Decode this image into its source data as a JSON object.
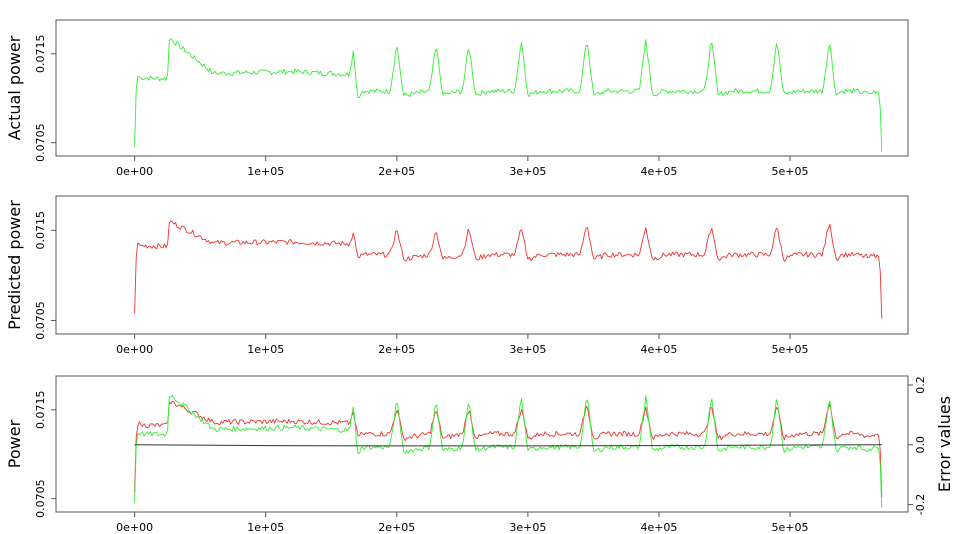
{
  "chart_data": [
    {
      "type": "line",
      "xlabel": "",
      "ylabel": "Actual power",
      "xlim": [
        -60000,
        590000
      ],
      "ylim": [
        0.07035,
        0.07188
      ],
      "xticks": [
        0,
        100000,
        200000,
        300000,
        400000,
        500000
      ],
      "xtick_labels": [
        "0e+00",
        "1e+05",
        "2e+05",
        "3e+05",
        "4e+05",
        "5e+05"
      ],
      "yticks": [
        0.0705,
        0.0715
      ],
      "ytick_labels": [
        "0.0705",
        "0.0715"
      ],
      "series": [
        {
          "color": "#33ee33",
          "x": [
            0,
            1500,
            5000,
            25000,
            26500,
            60000,
            120000,
            164000,
            167000,
            170000,
            174000,
            195000,
            200000,
            205000,
            225000,
            230000,
            235000,
            250000,
            255000,
            260000,
            270000,
            290000,
            295000,
            300000,
            310000,
            340000,
            345000,
            350000,
            360000,
            385000,
            390000,
            395000,
            405000,
            435000,
            440000,
            445000,
            455000,
            485000,
            490000,
            495000,
            505000,
            525000,
            530000,
            535000,
            540000,
            550000,
            560000,
            567000,
            568500,
            570000
          ],
          "y": [
            0.07045,
            0.07125,
            0.07123,
            0.07122,
            0.07168,
            0.07128,
            0.0713,
            0.07127,
            0.07155,
            0.071,
            0.07108,
            0.07108,
            0.07162,
            0.07103,
            0.07108,
            0.0716,
            0.07104,
            0.07108,
            0.0716,
            0.07104,
            0.07108,
            0.07108,
            0.07165,
            0.07104,
            0.07108,
            0.07108,
            0.07168,
            0.07103,
            0.07108,
            0.07108,
            0.07166,
            0.07104,
            0.07108,
            0.07108,
            0.07167,
            0.07104,
            0.07108,
            0.07108,
            0.07166,
            0.07104,
            0.07108,
            0.07108,
            0.07165,
            0.07104,
            0.07108,
            0.07108,
            0.07105,
            0.07108,
            0.07102,
            0.0704
          ]
        }
      ]
    },
    {
      "type": "line",
      "xlabel": "",
      "ylabel": "Predicted power",
      "xlim": [
        -60000,
        590000
      ],
      "ylim": [
        0.07035,
        0.07188
      ],
      "xticks": [
        0,
        100000,
        200000,
        300000,
        400000,
        500000
      ],
      "xtick_labels": [
        "0e+00",
        "1e+05",
        "2e+05",
        "3e+05",
        "4e+05",
        "5e+05"
      ],
      "yticks": [
        0.0705,
        0.0715
      ],
      "ytick_labels": [
        "0.0705",
        "0.0715"
      ],
      "series": [
        {
          "color": "#ee3333",
          "x": [
            0,
            1500,
            5000,
            25000,
            26500,
            60000,
            120000,
            164000,
            167000,
            170000,
            174000,
            195000,
            200000,
            205000,
            225000,
            230000,
            235000,
            250000,
            255000,
            260000,
            270000,
            290000,
            295000,
            300000,
            310000,
            340000,
            345000,
            350000,
            360000,
            385000,
            390000,
            395000,
            405000,
            435000,
            440000,
            445000,
            455000,
            485000,
            490000,
            495000,
            505000,
            525000,
            530000,
            535000,
            540000,
            550000,
            560000,
            567000,
            568500,
            570000
          ],
          "y": [
            0.07058,
            0.07135,
            0.07133,
            0.07132,
            0.0716,
            0.07136,
            0.07137,
            0.07135,
            0.07148,
            0.0712,
            0.07123,
            0.07123,
            0.07152,
            0.07118,
            0.07123,
            0.0715,
            0.07118,
            0.07123,
            0.07152,
            0.07118,
            0.07123,
            0.07123,
            0.07152,
            0.07118,
            0.07123,
            0.07123,
            0.07158,
            0.07118,
            0.07123,
            0.07123,
            0.07153,
            0.07118,
            0.07123,
            0.07123,
            0.07155,
            0.07118,
            0.07123,
            0.07123,
            0.07155,
            0.07118,
            0.07123,
            0.07123,
            0.0716,
            0.07118,
            0.07123,
            0.07123,
            0.0712,
            0.07123,
            0.07118,
            0.07052
          ]
        }
      ]
    },
    {
      "type": "line",
      "xlabel": "",
      "ylabel": "Power",
      "y2label": "Error values",
      "xlim": [
        -60000,
        590000
      ],
      "ylim": [
        0.07035,
        0.07188
      ],
      "y2lim": [
        -0.225,
        0.23
      ],
      "xticks": [
        0,
        100000,
        200000,
        300000,
        400000,
        500000
      ],
      "xtick_labels": [
        "0e+00",
        "1e+05",
        "2e+05",
        "3e+05",
        "4e+05",
        "5e+05"
      ],
      "yticks": [
        0.0705,
        0.0715
      ],
      "ytick_labels": [
        "0.0705",
        "0.0715"
      ],
      "y2ticks": [
        -0.2,
        0.0,
        0.2
      ],
      "y2tick_labels": [
        "-0.2",
        "0.0",
        "0.2"
      ],
      "series": [
        {
          "color": "#ee3333",
          "axis": "left",
          "x": [
            0,
            1500,
            5000,
            25000,
            26500,
            60000,
            120000,
            164000,
            167000,
            170000,
            174000,
            195000,
            200000,
            205000,
            225000,
            230000,
            235000,
            250000,
            255000,
            260000,
            270000,
            290000,
            295000,
            300000,
            310000,
            340000,
            345000,
            350000,
            360000,
            385000,
            390000,
            395000,
            405000,
            435000,
            440000,
            445000,
            455000,
            485000,
            490000,
            495000,
            505000,
            525000,
            530000,
            535000,
            540000,
            550000,
            560000,
            567000,
            568500,
            570000
          ],
          "y": [
            0.07058,
            0.07135,
            0.07133,
            0.07132,
            0.0716,
            0.07136,
            0.07137,
            0.07135,
            0.07148,
            0.0712,
            0.07123,
            0.07123,
            0.07152,
            0.07118,
            0.07123,
            0.0715,
            0.07118,
            0.07123,
            0.07152,
            0.07118,
            0.07123,
            0.07123,
            0.07152,
            0.07118,
            0.07123,
            0.07123,
            0.07158,
            0.07118,
            0.07123,
            0.07123,
            0.07153,
            0.07118,
            0.07123,
            0.07123,
            0.07155,
            0.07118,
            0.07123,
            0.07123,
            0.07155,
            0.07118,
            0.07123,
            0.07123,
            0.0716,
            0.07118,
            0.07123,
            0.07123,
            0.0712,
            0.07123,
            0.07118,
            0.07052
          ]
        },
        {
          "color": "#33ee33",
          "axis": "left",
          "x": [
            0,
            1500,
            5000,
            25000,
            26500,
            60000,
            120000,
            164000,
            167000,
            170000,
            174000,
            195000,
            200000,
            205000,
            225000,
            230000,
            235000,
            250000,
            255000,
            260000,
            270000,
            290000,
            295000,
            300000,
            310000,
            340000,
            345000,
            350000,
            360000,
            385000,
            390000,
            395000,
            405000,
            435000,
            440000,
            445000,
            455000,
            485000,
            490000,
            495000,
            505000,
            525000,
            530000,
            535000,
            540000,
            550000,
            560000,
            567000,
            568500,
            570000
          ],
          "y": [
            0.07045,
            0.07125,
            0.07123,
            0.07122,
            0.07168,
            0.07128,
            0.0713,
            0.07127,
            0.07155,
            0.071,
            0.07108,
            0.07108,
            0.07162,
            0.07103,
            0.07108,
            0.0716,
            0.07104,
            0.07108,
            0.0716,
            0.07104,
            0.07108,
            0.07108,
            0.07165,
            0.07104,
            0.07108,
            0.07108,
            0.07168,
            0.07103,
            0.07108,
            0.07108,
            0.07166,
            0.07104,
            0.07108,
            0.07108,
            0.07167,
            0.07104,
            0.07108,
            0.07108,
            0.07166,
            0.07104,
            0.07108,
            0.07108,
            0.07165,
            0.07104,
            0.07108,
            0.07108,
            0.07105,
            0.07108,
            0.07102,
            0.0704
          ]
        },
        {
          "color": "#333333",
          "axis": "right",
          "x": [
            0,
            100000,
            200000,
            300000,
            400000,
            500000,
            570000
          ],
          "y": [
            0.0,
            -0.003,
            -0.004,
            -0.004,
            -0.003,
            -0.001,
            0.0
          ]
        }
      ]
    }
  ]
}
